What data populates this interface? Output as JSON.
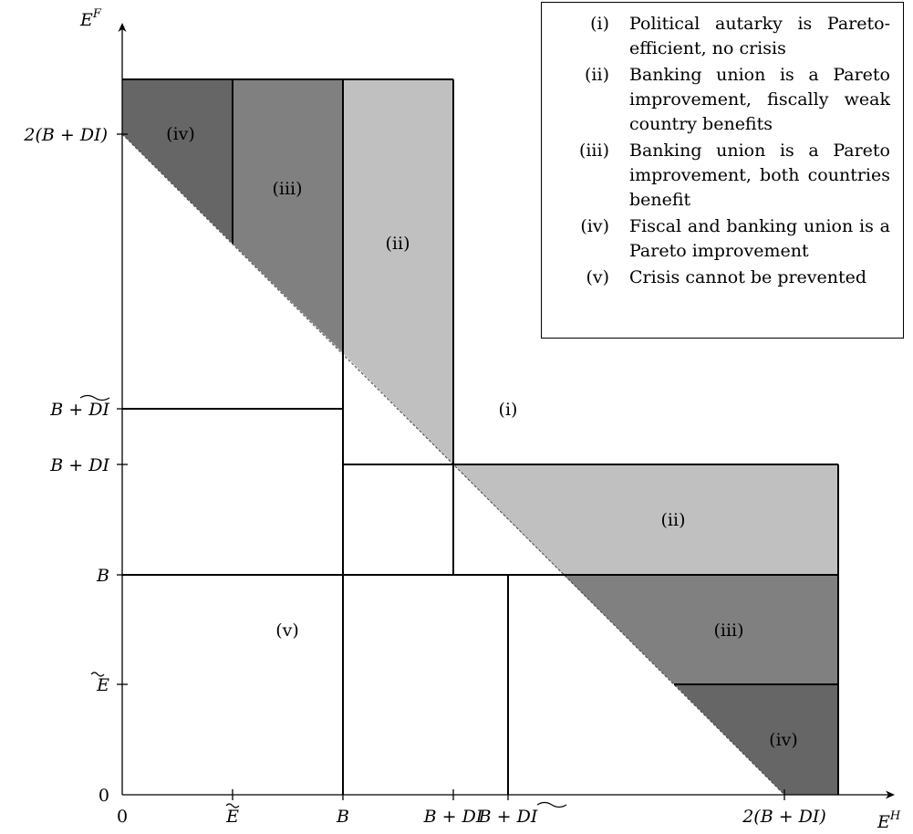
{
  "axes": {
    "y_label_base": "E",
    "y_label_sup": "F",
    "x_label_base": "E",
    "x_label_sup": "H"
  },
  "x_ticks": {
    "zero": "0",
    "e_tilde": "E",
    "b": "B",
    "b_di": "B + DI",
    "b_prefix": "B + ",
    "di_tilde": "DI",
    "two_b_di": "2(B + DI)"
  },
  "y_ticks": {
    "zero": "0",
    "e_tilde": "E",
    "b": "B",
    "b_di": "B + DI",
    "b_prefix": "B + ",
    "di_tilde": "DI",
    "two_b_di": "2(B + DI)"
  },
  "regions": {
    "iv_top": "(iv)",
    "iii_top": "(iii)",
    "ii_top": "(ii)",
    "i": "(i)",
    "ii_right": "(ii)",
    "iii_right": "(iii)",
    "iv_right": "(iv)",
    "v": "(v)"
  },
  "legend": {
    "items": [
      {
        "num": "(i)",
        "text": "Political autarky is Pareto-efficient, no crisis"
      },
      {
        "num": "(ii)",
        "text": "Banking union is a Pareto improvement, fiscally weak country benefits"
      },
      {
        "num": "(iii)",
        "text": "Banking union is a Pareto improvement, both countries benefit"
      },
      {
        "num": "(iv)",
        "text": "Fiscal and banking union is a Pareto improvement"
      },
      {
        "num": "(v)",
        "text": "Crisis cannot be prevented"
      }
    ]
  },
  "colors": {
    "region_ii": "#c0c0c0",
    "region_iii": "#808080",
    "region_iv": "#666666",
    "lines": "#000000"
  }
}
